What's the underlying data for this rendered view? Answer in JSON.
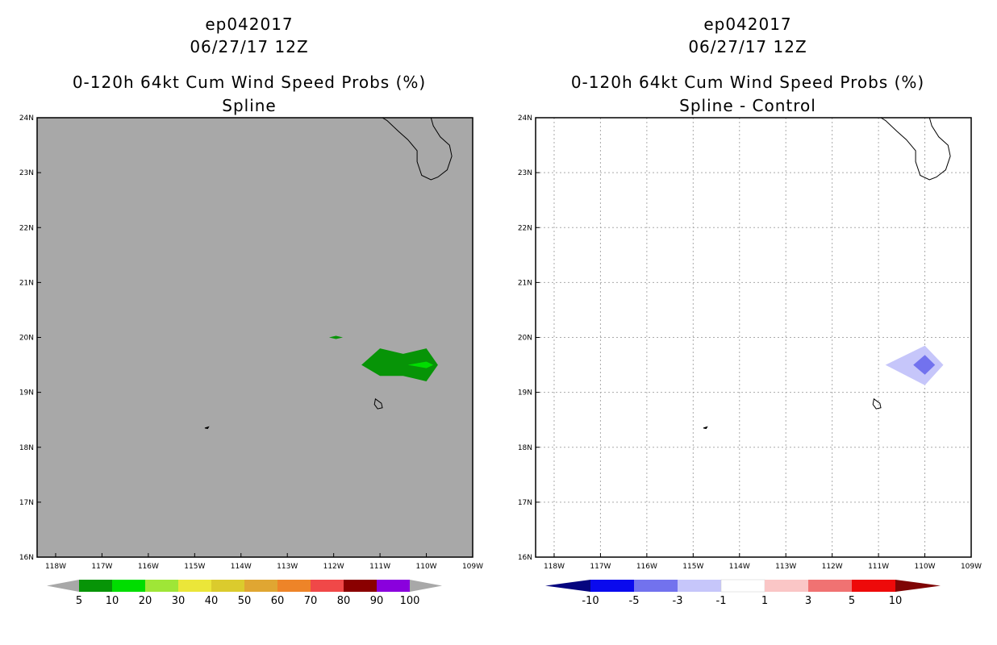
{
  "chart_data": [
    {
      "type": "heatmap",
      "panel": "left",
      "title_lines": [
        "ep042017",
        "06/27/17 12Z",
        "0-120h 64kt Cum Wind Speed Probs (%)",
        "Spline"
      ],
      "x_axis": {
        "range": [
          -118.4,
          -109.0
        ],
        "ticks": [
          -118,
          -117,
          -116,
          -115,
          -114,
          -113,
          -112,
          -111,
          -110,
          -109
        ],
        "tick_labels": [
          "118W",
          "117W",
          "116W",
          "115W",
          "114W",
          "113W",
          "112W",
          "111W",
          "110W",
          "109W"
        ]
      },
      "y_axis": {
        "range": [
          16,
          24
        ],
        "ticks": [
          16,
          17,
          18,
          19,
          20,
          21,
          22,
          23,
          24
        ],
        "tick_labels": [
          "16N",
          "17N",
          "18N",
          "19N",
          "20N",
          "21N",
          "22N",
          "23N",
          "24N"
        ]
      },
      "background": "#a8a8a8",
      "grid": false,
      "contours": [
        {
          "level": 5,
          "color": "#079407",
          "polygon": [
            [
              -111.4,
              19.5
            ],
            [
              -111.0,
              19.8
            ],
            [
              -110.5,
              19.7
            ],
            [
              -110.0,
              19.8
            ],
            [
              -109.75,
              19.5
            ],
            [
              -110.0,
              19.2
            ],
            [
              -110.5,
              19.3
            ],
            [
              -111.0,
              19.3
            ]
          ]
        },
        {
          "level": 10,
          "color": "#00dd00",
          "polygon": [
            [
              -110.4,
              19.5
            ],
            [
              -110.0,
              19.56
            ],
            [
              -109.85,
              19.5
            ],
            [
              -110.0,
              19.44
            ]
          ]
        },
        {
          "level": 5,
          "color": "#079407",
          "polygon": [
            [
              -112.1,
              20.0
            ],
            [
              -111.95,
              20.03
            ],
            [
              -111.8,
              20.0
            ],
            [
              -111.95,
              19.97
            ]
          ]
        }
      ],
      "colorbar": {
        "labels": [
          "5",
          "10",
          "20",
          "30",
          "40",
          "50",
          "60",
          "70",
          "80",
          "90",
          "100"
        ],
        "colors": [
          "#079407",
          "#00dd00",
          "#9fe637",
          "#ebe639",
          "#dbcb2d",
          "#e0a632",
          "#ee8428",
          "#f04848",
          "#8a0000",
          "#8a00dd"
        ]
      }
    },
    {
      "type": "heatmap",
      "panel": "right",
      "title_lines": [
        "ep042017",
        "06/27/17 12Z",
        "0-120h 64kt Cum Wind Speed Probs (%)",
        "Spline - Control"
      ],
      "x_axis": {
        "range": [
          -118.4,
          -109.0
        ],
        "ticks": [
          -118,
          -117,
          -116,
          -115,
          -114,
          -113,
          -112,
          -111,
          -110,
          -109
        ],
        "tick_labels": [
          "118W",
          "117W",
          "116W",
          "115W",
          "114W",
          "113W",
          "112W",
          "111W",
          "110W",
          "109W"
        ]
      },
      "y_axis": {
        "range": [
          16,
          24
        ],
        "ticks": [
          16,
          17,
          18,
          19,
          20,
          21,
          22,
          23,
          24
        ],
        "tick_labels": [
          "16N",
          "17N",
          "18N",
          "19N",
          "20N",
          "21N",
          "22N",
          "23N",
          "24N"
        ]
      },
      "background": "#ffffff",
      "grid": true,
      "contours": [
        {
          "level": -3,
          "color": "#c6c6fa",
          "polygon": [
            [
              -110.85,
              19.5
            ],
            [
              -110.0,
              19.85
            ],
            [
              -109.6,
              19.5
            ],
            [
              -110.0,
              19.13
            ]
          ]
        },
        {
          "level": -5,
          "color": "#7272ee",
          "polygon": [
            [
              -110.25,
              19.5
            ],
            [
              -110.0,
              19.68
            ],
            [
              -109.78,
              19.5
            ],
            [
              -110.0,
              19.32
            ]
          ]
        }
      ],
      "colorbar": {
        "labels": [
          "-10",
          "-5",
          "-3",
          "-1",
          "1",
          "3",
          "5",
          "10"
        ],
        "colors": [
          "#05057f",
          "#0a0aee",
          "#7272ee",
          "#c6c6fa",
          "#ffffff",
          "#fac6c6",
          "#f07272",
          "#ee0a0a",
          "#7f0505"
        ]
      }
    }
  ],
  "coastline": {
    "baja": [
      [
        -109.9,
        24.0
      ],
      [
        -109.85,
        23.85
      ],
      [
        -109.7,
        23.65
      ],
      [
        -109.5,
        23.5
      ],
      [
        -109.45,
        23.3
      ],
      [
        -109.55,
        23.05
      ],
      [
        -109.75,
        22.92
      ],
      [
        -109.9,
        22.87
      ],
      [
        -110.1,
        22.95
      ],
      [
        -110.2,
        23.2
      ],
      [
        -110.2,
        23.4
      ],
      [
        -110.4,
        23.6
      ],
      [
        -110.6,
        23.75
      ],
      [
        -110.85,
        23.95
      ],
      [
        -110.95,
        24.0
      ]
    ],
    "socorro_island": [
      [
        -111.1,
        18.88
      ],
      [
        -110.97,
        18.8
      ],
      [
        -110.95,
        18.72
      ],
      [
        -111.05,
        18.7
      ],
      [
        -111.12,
        18.78
      ]
    ],
    "clarion_island": [
      [
        -114.78,
        18.35
      ],
      [
        -114.7,
        18.37
      ],
      [
        -114.72,
        18.34
      ]
    ]
  }
}
